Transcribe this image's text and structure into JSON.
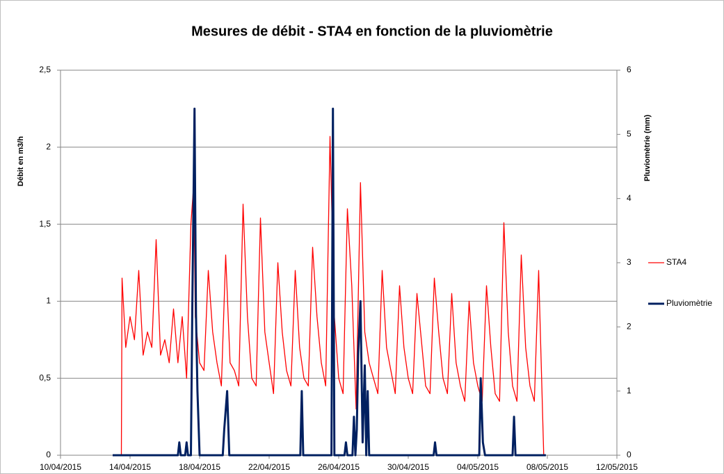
{
  "chart_data": {
    "type": "line",
    "title": "Mesures de débit - STA4 en fonction de la pluviomètrie",
    "y_label": "Débit en m3/h",
    "y2_label": "Pluviomètrie (mm)",
    "xlim": [
      "2015-04-10 00:00",
      "2015-05-12 00:00"
    ],
    "xticks": [
      {
        "value": "2015-04-10 00:00",
        "label": "10/04/2015"
      },
      {
        "value": "2015-04-14 00:00",
        "label": "14/04/2015"
      },
      {
        "value": "2015-04-18 00:00",
        "label": "18/04/2015"
      },
      {
        "value": "2015-04-22 00:00",
        "label": "22/04/2015"
      },
      {
        "value": "2015-04-26 00:00",
        "label": "26/04/2015"
      },
      {
        "value": "2015-04-30 00:00",
        "label": "30/04/2015"
      },
      {
        "value": "2015-05-04 00:00",
        "label": "04/05/2015"
      },
      {
        "value": "2015-05-08 00:00",
        "label": "08/05/2015"
      },
      {
        "value": "2015-05-12 00:00",
        "label": "12/05/2015"
      }
    ],
    "ylim": [
      0,
      2.5
    ],
    "yticks": [
      0,
      {
        "value": 0.5,
        "label": "0,5"
      },
      1,
      {
        "value": 1.5,
        "label": "1,5"
      },
      2,
      {
        "value": 2.5,
        "label": "2,5"
      }
    ],
    "y2lim": [
      0,
      6
    ],
    "y2ticks": [
      0,
      1,
      2,
      3,
      4,
      5,
      6
    ],
    "grid": true,
    "legend": "right",
    "series": [
      {
        "name": "STA4",
        "color": "#ff0000",
        "width": 1.3,
        "x": [
          "2015-04-13 12:00",
          "2015-04-13 13:00",
          "2015-04-13 18:00",
          "2015-04-14 00:00",
          "2015-04-14 06:00",
          "2015-04-14 12:00",
          "2015-04-14 18:00",
          "2015-04-15 00:00",
          "2015-04-15 06:00",
          "2015-04-15 12:00",
          "2015-04-15 18:00",
          "2015-04-16 00:00",
          "2015-04-16 06:00",
          "2015-04-16 12:00",
          "2015-04-16 18:00",
          "2015-04-17 00:00",
          "2015-04-17 06:00",
          "2015-04-17 12:00",
          "2015-04-17 16:00",
          "2015-04-17 18:00",
          "2015-04-18 00:00",
          "2015-04-18 06:00",
          "2015-04-18 12:00",
          "2015-04-18 18:00",
          "2015-04-19 00:00",
          "2015-04-19 06:00",
          "2015-04-19 12:00",
          "2015-04-19 18:00",
          "2015-04-20 00:00",
          "2015-04-20 06:00",
          "2015-04-20 12:00",
          "2015-04-20 18:00",
          "2015-04-21 00:00",
          "2015-04-21 06:00",
          "2015-04-21 12:00",
          "2015-04-21 18:00",
          "2015-04-22 00:00",
          "2015-04-22 06:00",
          "2015-04-22 12:00",
          "2015-04-22 18:00",
          "2015-04-23 00:00",
          "2015-04-23 06:00",
          "2015-04-23 12:00",
          "2015-04-23 18:00",
          "2015-04-24 00:00",
          "2015-04-24 06:00",
          "2015-04-24 12:00",
          "2015-04-24 18:00",
          "2015-04-25 00:00",
          "2015-04-25 06:00",
          "2015-04-25 12:00",
          "2015-04-25 18:00",
          "2015-04-26 00:00",
          "2015-04-26 06:00",
          "2015-04-26 12:00",
          "2015-04-26 18:00",
          "2015-04-27 00:00",
          "2015-04-27 06:00",
          "2015-04-27 12:00",
          "2015-04-27 18:00",
          "2015-04-28 00:00",
          "2015-04-28 06:00",
          "2015-04-28 12:00",
          "2015-04-28 18:00",
          "2015-04-29 00:00",
          "2015-04-29 06:00",
          "2015-04-29 12:00",
          "2015-04-29 18:00",
          "2015-04-30 00:00",
          "2015-04-30 06:00",
          "2015-04-30 12:00",
          "2015-04-30 18:00",
          "2015-05-01 00:00",
          "2015-05-01 06:00",
          "2015-05-01 12:00",
          "2015-05-01 18:00",
          "2015-05-02 00:00",
          "2015-05-02 06:00",
          "2015-05-02 12:00",
          "2015-05-02 18:00",
          "2015-05-03 00:00",
          "2015-05-03 06:00",
          "2015-05-03 12:00",
          "2015-05-03 18:00",
          "2015-05-04 00:00",
          "2015-05-04 06:00",
          "2015-05-04 12:00",
          "2015-05-04 18:00",
          "2015-05-05 00:00",
          "2015-05-05 06:00",
          "2015-05-05 12:00",
          "2015-05-05 18:00",
          "2015-05-06 00:00",
          "2015-05-06 06:00",
          "2015-05-06 12:00",
          "2015-05-06 18:00",
          "2015-05-07 00:00",
          "2015-05-07 06:00",
          "2015-05-07 12:00",
          "2015-05-07 19:00"
        ],
        "values": [
          0,
          1.15,
          0.7,
          0.9,
          0.75,
          1.2,
          0.65,
          0.8,
          0.7,
          1.4,
          0.65,
          0.75,
          0.6,
          0.95,
          0.6,
          0.9,
          0.5,
          1.5,
          1.77,
          0.9,
          0.6,
          0.55,
          1.2,
          0.8,
          0.6,
          0.45,
          1.3,
          0.6,
          0.55,
          0.45,
          1.63,
          0.9,
          0.5,
          0.45,
          1.54,
          0.8,
          0.6,
          0.4,
          1.25,
          0.8,
          0.55,
          0.45,
          1.2,
          0.7,
          0.5,
          0.45,
          1.35,
          0.9,
          0.6,
          0.45,
          2.07,
          0.9,
          0.5,
          0.4,
          1.6,
          1.1,
          0.3,
          1.77,
          0.8,
          0.6,
          0.5,
          0.4,
          1.2,
          0.7,
          0.55,
          0.4,
          1.1,
          0.7,
          0.5,
          0.4,
          1.05,
          0.75,
          0.45,
          0.4,
          1.15,
          0.8,
          0.5,
          0.4,
          1.05,
          0.6,
          0.45,
          0.35,
          1.0,
          0.6,
          0.45,
          0.35,
          1.1,
          0.7,
          0.4,
          0.35,
          1.51,
          0.8,
          0.45,
          0.35,
          1.3,
          0.7,
          0.45,
          0.35,
          1.2,
          0
        ]
      },
      {
        "name": "Pluviomètrie",
        "color": "#002060",
        "width": 3,
        "axis": "y2",
        "x": [
          "2015-04-13 00:00",
          "2015-04-16 18:00",
          "2015-04-16 20:00",
          "2015-04-16 22:00",
          "2015-04-17 04:00",
          "2015-04-17 06:00",
          "2015-04-17 08:00",
          "2015-04-17 12:00",
          "2015-04-17 14:00",
          "2015-04-17 17:00",
          "2015-04-17 19:00",
          "2015-04-17 21:00",
          "2015-04-18 00:00",
          "2015-04-19 08:00",
          "2015-04-19 10:00",
          "2015-04-19 14:00",
          "2015-04-19 17:00",
          "2015-04-19 19:00",
          "2015-04-23 19:00",
          "2015-04-23 21:00",
          "2015-04-23 23:00",
          "2015-04-25 14:00",
          "2015-04-25 16:00",
          "2015-04-25 18:00",
          "2015-04-26 08:00",
          "2015-04-26 10:00",
          "2015-04-26 12:00",
          "2015-04-26 19:00",
          "2015-04-26 21:00",
          "2015-04-26 23:00",
          "2015-04-27 01:00",
          "2015-04-27 03:00",
          "2015-04-27 06:00",
          "2015-04-27 09:00",
          "2015-04-27 12:00",
          "2015-04-27 14:00",
          "2015-04-27 16:00",
          "2015-04-27 18:00",
          "2015-04-27 20:00",
          "2015-04-27 22:00",
          "2015-05-01 11:00",
          "2015-05-01 13:00",
          "2015-05-01 15:00",
          "2015-05-04 02:00",
          "2015-05-04 04:00",
          "2015-05-04 07:00",
          "2015-05-04 10:00",
          "2015-05-04 12:00",
          "2015-05-06 00:00",
          "2015-05-06 02:00",
          "2015-05-06 04:00",
          "2015-05-07 22:00"
        ],
        "values": [
          0,
          0,
          0.2,
          0,
          0,
          0.2,
          0,
          0,
          2.4,
          5.4,
          2.2,
          1.0,
          0,
          0,
          0.4,
          1.0,
          0,
          0,
          0,
          1.0,
          0,
          0,
          5.4,
          0,
          0,
          0.2,
          0,
          0,
          0.6,
          0,
          0.4,
          1.6,
          2.4,
          0.2,
          1.4,
          0,
          1.0,
          0,
          0,
          0,
          0,
          0.2,
          0,
          0,
          1.2,
          0.2,
          0,
          0,
          0,
          0.6,
          0,
          0
        ]
      }
    ]
  }
}
